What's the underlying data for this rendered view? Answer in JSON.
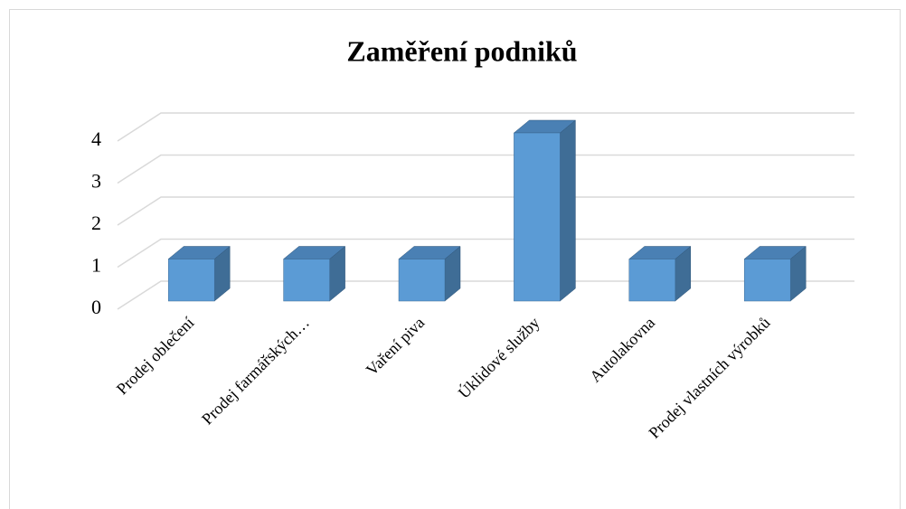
{
  "chart_data": {
    "type": "bar",
    "title": "Zaměření podniků",
    "categories": [
      "Prodej oblečení",
      "Prodej farmářských…",
      "Vaření piva",
      "Úklidové služby",
      "Autolakovna",
      "Prodej vlastních výrobků"
    ],
    "values": [
      1,
      1,
      1,
      4,
      1,
      1
    ],
    "color": "#5b9bd5",
    "ylim": [
      0,
      4
    ],
    "yticks": [
      0,
      1,
      2,
      3,
      4
    ],
    "grid": true
  }
}
